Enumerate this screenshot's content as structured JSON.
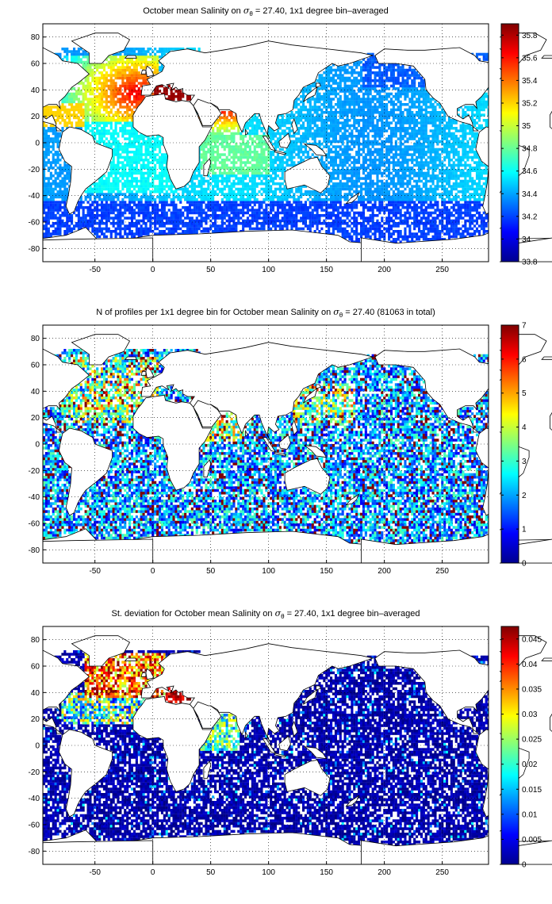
{
  "panels": [
    {
      "id": "salinity",
      "title_pre": "October mean Salinity on ",
      "title_sigma": "σ",
      "title_sub": "θ",
      "title_post": " = 27.40, 1x1 degree bin–averaged",
      "colorbar_ticks": [
        "35.8",
        "35.6",
        "35.4",
        "35.2",
        "35",
        "34.8",
        "34.6",
        "34.4",
        "34.2",
        "34",
        "33.8"
      ],
      "colorbar_range": [
        33.8,
        35.9
      ]
    },
    {
      "id": "profiles",
      "title_pre": "N of profiles per 1x1 degree bin for October mean Salinity on ",
      "title_sigma": "σ",
      "title_sub": "θ",
      "title_post": " = 27.40 (81063 in total)",
      "colorbar_ticks": [
        "7",
        "6",
        "5",
        "4",
        "3",
        "2",
        "1",
        "0"
      ],
      "colorbar_range": [
        0,
        7
      ]
    },
    {
      "id": "stdev",
      "title_pre": "St. deviation for October mean Salinity on ",
      "title_sigma": "σ",
      "title_sub": "θ",
      "title_post": " = 27.40, 1x1 degree bin–averaged",
      "colorbar_ticks": [
        "0.045",
        "0.04",
        "0.035",
        "0.03",
        "0.025",
        "0.02",
        "0.015",
        "0.01",
        "0.005",
        "0"
      ],
      "colorbar_range": [
        0,
        0.0475
      ]
    }
  ],
  "axes": {
    "x_ticks": [
      "-50",
      "0",
      "50",
      "100",
      "150",
      "200",
      "250"
    ],
    "y_ticks": [
      "80",
      "60",
      "40",
      "20",
      "0",
      "-20",
      "-40",
      "-60",
      "-80"
    ],
    "xlim": [
      -95,
      290
    ],
    "ylim": [
      -90,
      90
    ],
    "grid": "dotted"
  },
  "colormap": "jet"
}
